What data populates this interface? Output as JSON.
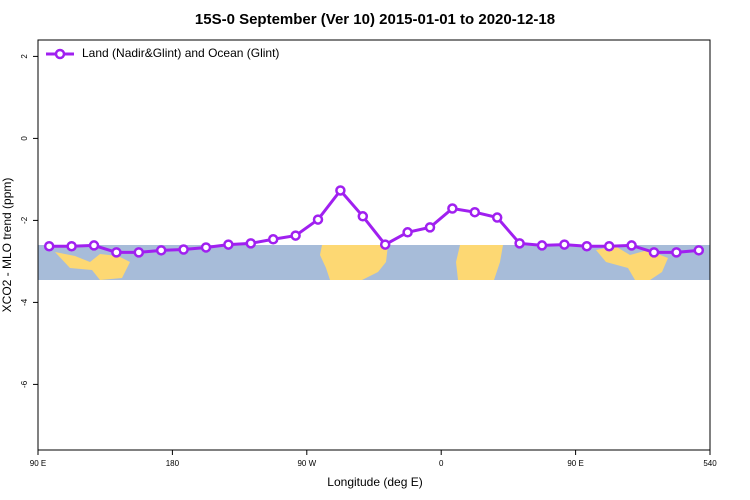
{
  "chart_data": {
    "type": "line",
    "title": "15S-0 September (Ver 10)   2015-01-01 to 2020-12-18",
    "xlabel": "Longitude (deg E)",
    "ylabel": "XCO2 - MLO trend (ppm)",
    "x": [
      97.5,
      112.5,
      127.5,
      142.5,
      157.5,
      172.5,
      187.5,
      202.5,
      217.5,
      232.5,
      247.5,
      262.5,
      277.5,
      292.5,
      307.5,
      322.5,
      337.5,
      352.5,
      367.5,
      382.5,
      397.5,
      412.5,
      427.5,
      442.5,
      457.5,
      472.5,
      487.5,
      502.5,
      517.5,
      532.5
    ],
    "series": [
      {
        "name": "Land (Nadir&Glint) and Ocean (Glint)",
        "color": "#a020f0",
        "values": [
          -2.63,
          -2.63,
          -2.61,
          -2.78,
          -2.78,
          -2.73,
          -2.71,
          -2.66,
          -2.59,
          -2.56,
          -2.46,
          -2.37,
          -1.98,
          -1.27,
          -1.9,
          -2.59,
          -2.29,
          -2.17,
          -1.71,
          -1.8,
          -1.93,
          -2.56,
          -2.61,
          -2.59,
          -2.63,
          -2.63,
          -2.61,
          -2.78,
          -2.78,
          -2.73
        ]
      }
    ],
    "xlim": [
      90,
      540
    ],
    "xticks": [
      {
        "value": 90,
        "label": "90 E"
      },
      180,
      {
        "value": 270,
        "label": "90 W"
      },
      {
        "value": 360,
        "label": "0"
      },
      {
        "value": 450,
        "label": "90 E"
      },
      540
    ],
    "ylim": [
      -7.6,
      2.4
    ],
    "yticks": [
      -6,
      -4,
      -2,
      0,
      2
    ],
    "legend": "top-left"
  }
}
